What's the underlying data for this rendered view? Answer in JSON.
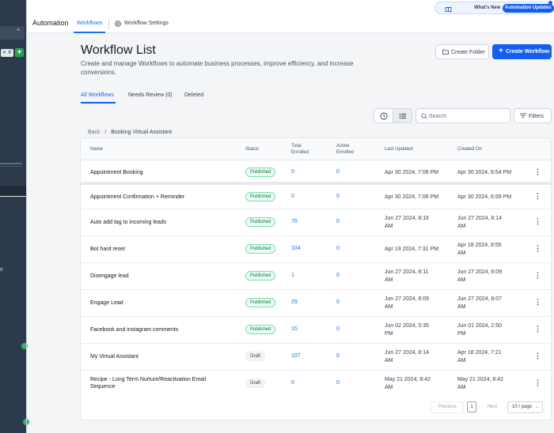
{
  "app": {
    "title": "Automation"
  },
  "topbar": {
    "tab_workflows": "Workflows",
    "tab_settings": "Workflow Settings"
  },
  "updates": {
    "whats_new": "What's New",
    "badge": "Automation Updates"
  },
  "sidebar": {
    "kbd": "⌘ K",
    "e_char": "e"
  },
  "header": {
    "title": "Workflow List",
    "subtitle": "Create and manage Workflows to automate business processes, improve efficiency, and increase conversions.",
    "create_folder": "Create Folder",
    "create_workflow": "Create Workflow"
  },
  "tabs": [
    {
      "label": "All Workflows",
      "active": true
    },
    {
      "label": "Needs Review (0)",
      "active": false
    },
    {
      "label": "Deleted",
      "active": false
    }
  ],
  "toolbar": {
    "search_placeholder": "Search",
    "filters": "Filters"
  },
  "breadcrumb": {
    "back": "Back",
    "sep": "/",
    "current": "Booking Virtual Assistant"
  },
  "table": {
    "columns": [
      "Name",
      "Status",
      "Total Enrolled",
      "Active Enrolled",
      "Last Updated",
      "Created On"
    ],
    "rows": [
      {
        "name": "Appointment Booking",
        "status": "Published",
        "total": "0",
        "active": "0",
        "updated": "Apr 30 2024, 7:08 PM",
        "created": "Apr 30 2024, 6:54 PM"
      },
      {
        "name": "Appointment Confirmation + Reminder",
        "status": "Published",
        "total": "0",
        "active": "0",
        "updated": "Apr 30 2024, 7:06 PM",
        "created": "Apr 30 2024, 6:59 PM"
      },
      {
        "name": "Auto add tag to incoming leads",
        "status": "Published",
        "total": "70",
        "active": "0",
        "updated": "Jun 27 2024, 8:16 AM",
        "created": "Jun 27 2024, 8:14 AM"
      },
      {
        "name": "Bot hard reset",
        "status": "Published",
        "total": "104",
        "active": "0",
        "updated": "Apr 19 2024, 7:31 PM",
        "created": "Apr 18 2024, 8:55 AM"
      },
      {
        "name": "Disengage lead",
        "status": "Published",
        "total": "1",
        "active": "0",
        "updated": "Jun 27 2024, 8:11 AM",
        "created": "Jun 27 2024, 8:09 AM"
      },
      {
        "name": "Engage Lead",
        "status": "Published",
        "total": "29",
        "active": "0",
        "updated": "Jun 27 2024, 8:09 AM",
        "created": "Jun 27 2024, 8:07 AM"
      },
      {
        "name": "Facebook and instagram comments",
        "status": "Published",
        "total": "15",
        "active": "0",
        "updated": "Jun 02 2024, 5:35 PM",
        "created": "Jun 01 2024, 2:50 PM"
      },
      {
        "name": "My Virtual Assistant",
        "status": "Draft",
        "total": "107",
        "active": "0",
        "updated": "Jun 27 2024, 8:14 AM",
        "created": "Apr 18 2024, 7:21 AM"
      },
      {
        "name": "Recipe - Long Term Nurture/Reactivation Email Sequence",
        "status": "Draft",
        "total": "0",
        "active": "0",
        "updated": "May 21 2024, 8:42 AM",
        "created": "May 21 2024, 8:42 AM"
      }
    ]
  },
  "pagination": {
    "previous": "Previous",
    "page": "1",
    "next": "Next",
    "page_size": "10 / page"
  },
  "colors": {
    "accent": "#155eef",
    "published": "#067647",
    "sidebar": "#2c3a4b"
  }
}
